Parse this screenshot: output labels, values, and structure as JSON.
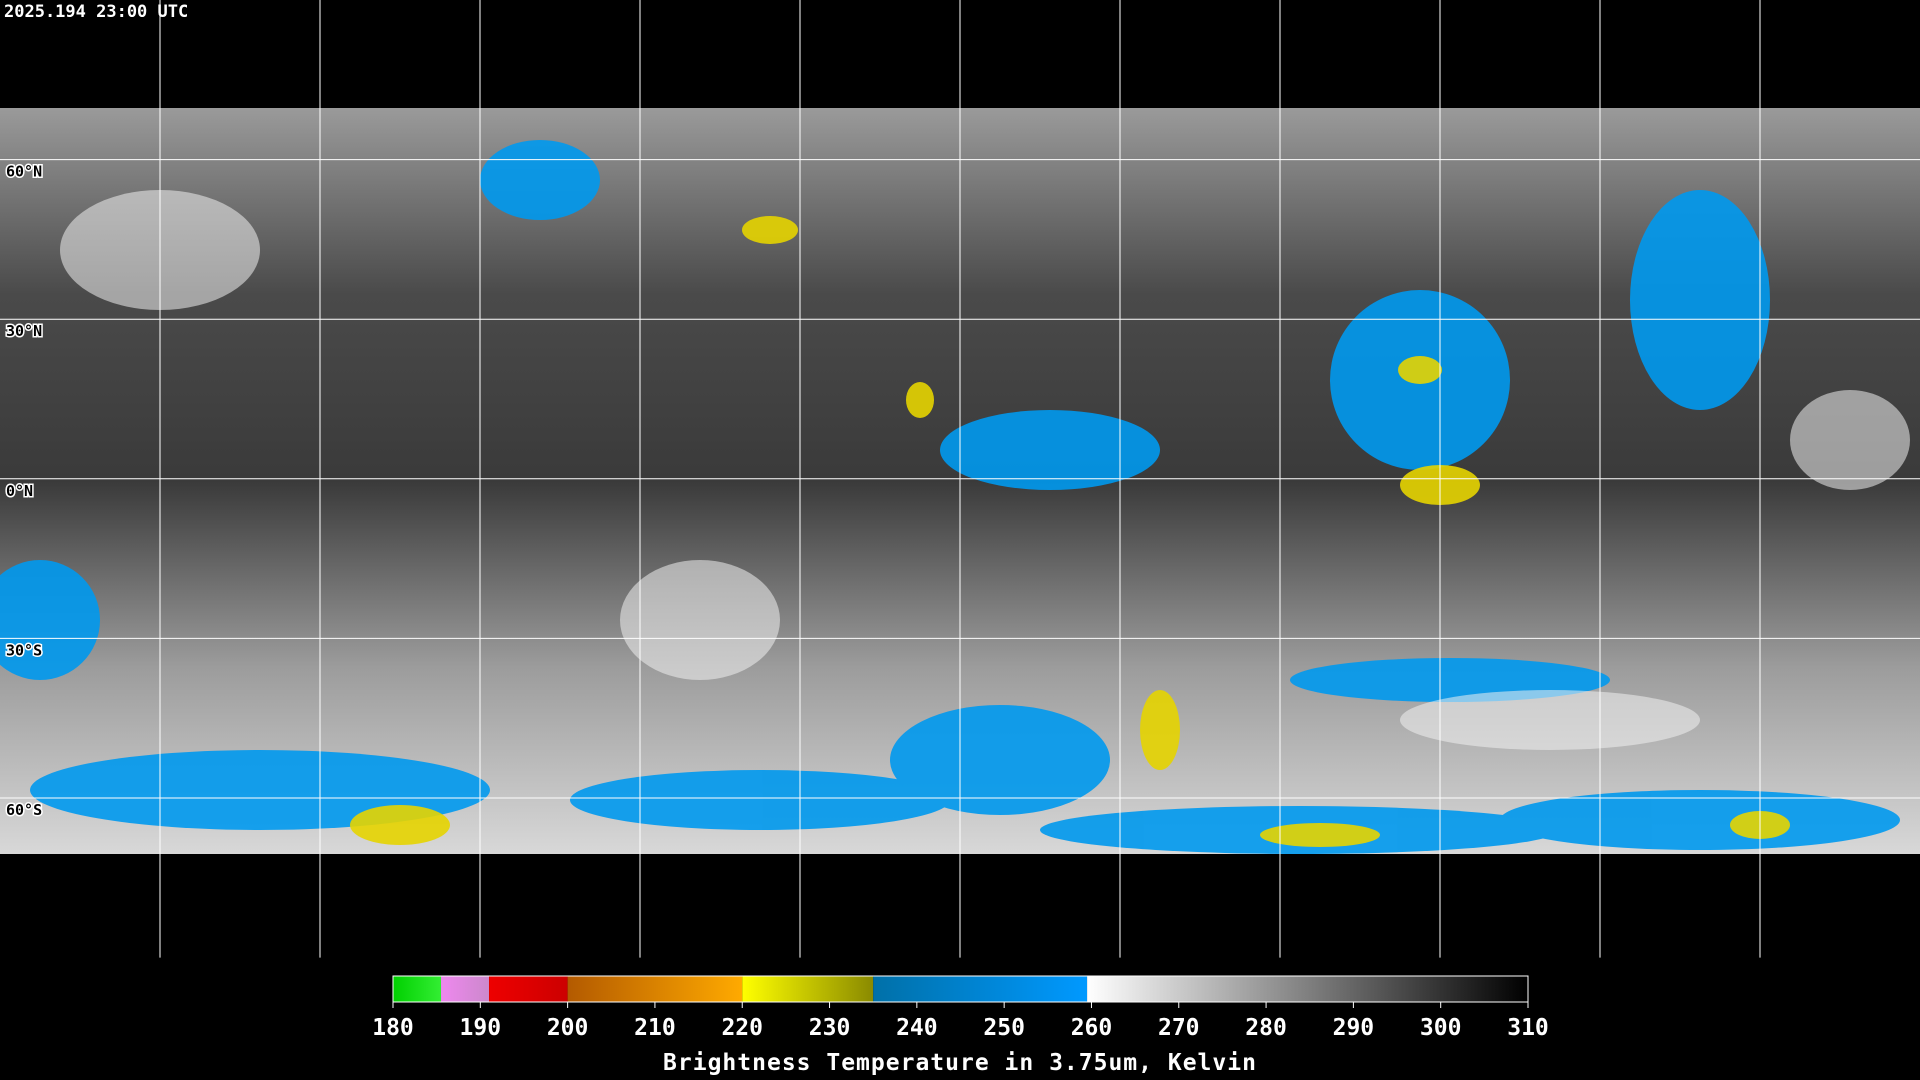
{
  "timestamp": "2025.194 23:00 UTC",
  "latitude_labels": [
    "60°N",
    "30°N",
    "0°N",
    "30°S",
    "60°S"
  ],
  "colorbar": {
    "title": "Brightness Temperature in 3.75um, Kelvin",
    "ticks": [
      180,
      190,
      200,
      210,
      220,
      230,
      240,
      250,
      260,
      270,
      280,
      290,
      300,
      310
    ],
    "segments": [
      {
        "from": 180,
        "to": 185.5,
        "colors": [
          "#00d000",
          "#33ee33"
        ]
      },
      {
        "from": 185.5,
        "to": 191,
        "colors": [
          "#ee88ee",
          "#cc88cc"
        ]
      },
      {
        "from": 191,
        "to": 200,
        "colors": [
          "#ee0000",
          "#cc0000"
        ]
      },
      {
        "from": 200,
        "to": 220,
        "colors": [
          "#b35a00",
          "#ffaa00"
        ]
      },
      {
        "from": 220,
        "to": 235,
        "colors": [
          "#ffff00",
          "#8a8a00"
        ]
      },
      {
        "from": 235,
        "to": 259.5,
        "colors": [
          "#0070a8",
          "#0099ff"
        ]
      },
      {
        "from": 259.5,
        "to": 310,
        "colors": [
          "#ffffff",
          "#000000"
        ]
      }
    ]
  }
}
